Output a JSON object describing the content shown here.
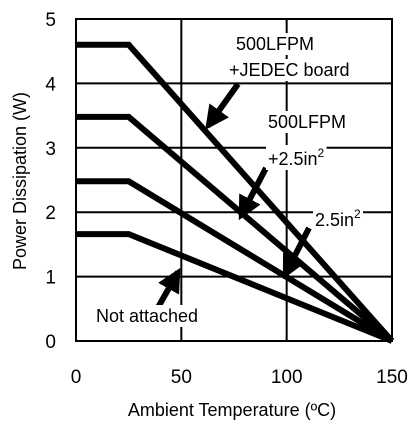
{
  "chart_data": {
    "type": "line",
    "xlabel": "Ambient Temperature (ºC)",
    "ylabel": "Power Dissipation (W)",
    "xlim": [
      0,
      150
    ],
    "ylim": [
      0,
      5
    ],
    "x_ticks": [
      "0",
      "50",
      "100",
      "150"
    ],
    "y_ticks": [
      "0",
      "1",
      "2",
      "3",
      "4",
      "5"
    ],
    "grid": true,
    "series": [
      {
        "x": [
          0,
          25,
          150
        ],
        "y": [
          4.6,
          4.6,
          0
        ]
      },
      {
        "x": [
          0,
          25,
          150
        ],
        "y": [
          3.48,
          3.48,
          0
        ]
      },
      {
        "x": [
          0,
          25,
          150
        ],
        "y": [
          2.48,
          2.48,
          0
        ]
      },
      {
        "x": [
          0,
          25,
          150
        ],
        "y": [
          1.66,
          1.66,
          0
        ]
      }
    ],
    "annotations": [
      {
        "text": "500LFPM",
        "sup": ""
      },
      {
        "text": "+JEDEC board",
        "sup": ""
      },
      {
        "text": "500LFPM",
        "sup": ""
      },
      {
        "text": "+2.5in",
        "sup": "2"
      },
      {
        "text": "2.5in",
        "sup": "2"
      },
      {
        "text": "Not attached",
        "sup": ""
      }
    ]
  }
}
